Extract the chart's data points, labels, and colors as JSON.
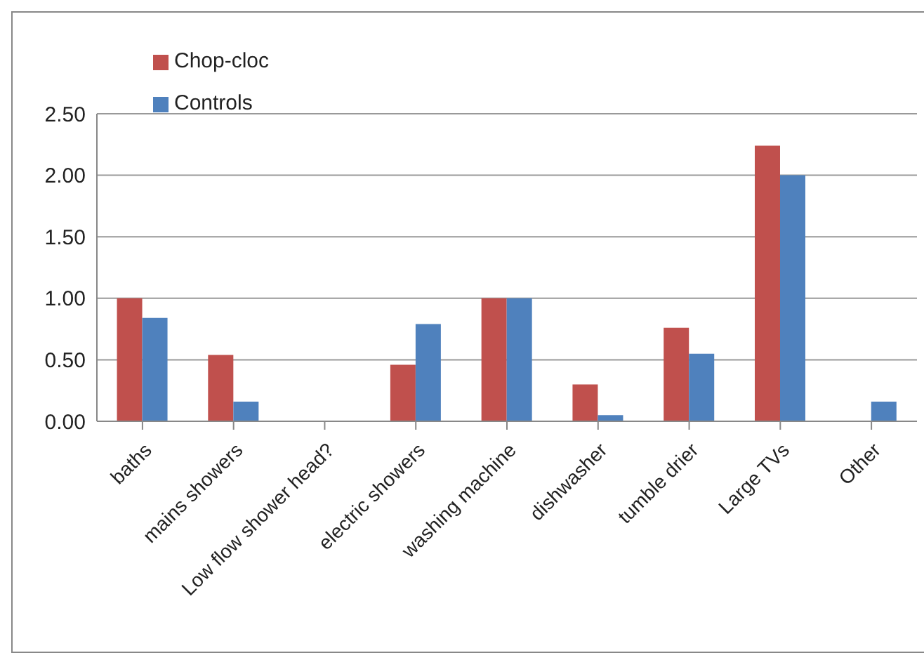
{
  "chart_data": {
    "type": "bar",
    "categories": [
      "baths",
      "mains showers",
      "Low flow shower head?",
      "electric showers",
      "washing machine",
      "dishwasher",
      "tumble drier",
      "Large TVs",
      "Other"
    ],
    "series": [
      {
        "name": "Chop-cloc",
        "color": "#c0504d",
        "values": [
          1.0,
          0.54,
          0,
          0.46,
          1.0,
          0.3,
          0.76,
          2.24,
          0
        ]
      },
      {
        "name": "Controls",
        "color": "#4f81bd",
        "values": [
          0.84,
          0.16,
          0,
          0.79,
          1.0,
          0.05,
          0.55,
          2.0,
          0.16
        ]
      }
    ],
    "ylim": [
      0,
      2.5
    ],
    "yticks": [
      {
        "value": 0,
        "label": "0.00"
      },
      {
        "value": 0.5,
        "label": "0.50"
      },
      {
        "value": 1,
        "label": "1.00"
      },
      {
        "value": 1.5,
        "label": "1.50"
      },
      {
        "value": 2,
        "label": "2.00"
      },
      {
        "value": 2.5,
        "label": "2.50"
      }
    ],
    "grid": "y",
    "legend": "top left"
  }
}
